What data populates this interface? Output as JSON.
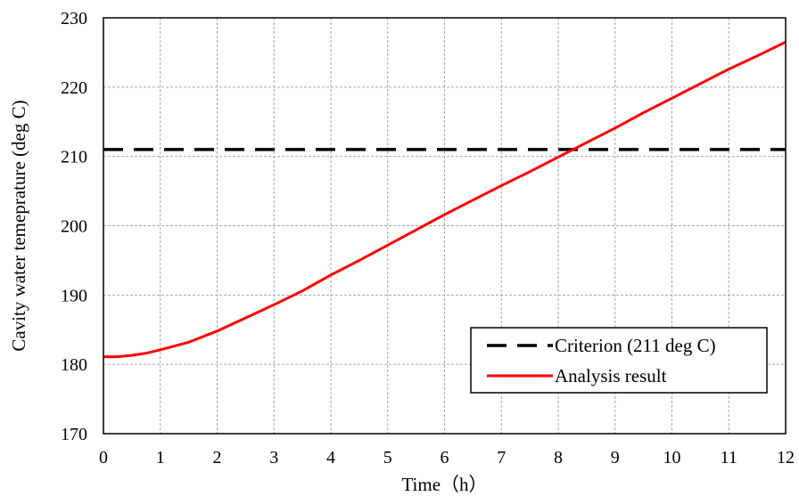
{
  "chart_data": {
    "type": "line",
    "title": "",
    "xlabel": "Time（h）",
    "ylabel": "Cavity water temeprature (deg C)",
    "xlim": [
      0,
      12
    ],
    "ylim": [
      170,
      230
    ],
    "x_ticks": [
      "0",
      "1",
      "2",
      "3",
      "4",
      "5",
      "6",
      "7",
      "8",
      "9",
      "10",
      "11",
      "12"
    ],
    "y_ticks": [
      "170",
      "180",
      "190",
      "200",
      "210",
      "220",
      "230"
    ],
    "grid": true,
    "legend_position": "bottom-right",
    "series": [
      {
        "name": "Criterion (211 deg C)",
        "style": "dashed",
        "color": "#000000",
        "x": [
          0,
          12
        ],
        "y": [
          211,
          211
        ]
      },
      {
        "name": "Analysis result",
        "style": "solid",
        "color": "#ff0000",
        "x": [
          0,
          0.25,
          0.5,
          0.75,
          1,
          1.5,
          2,
          2.5,
          3,
          3.5,
          4,
          4.5,
          5,
          5.5,
          6,
          6.5,
          7,
          7.5,
          8,
          8.5,
          9,
          9.5,
          10,
          10.5,
          11,
          11.5,
          12
        ],
        "y": [
          181.1,
          181.1,
          181.3,
          181.6,
          182.1,
          183.2,
          184.8,
          186.7,
          188.6,
          190.6,
          192.9,
          195.0,
          197.2,
          199.4,
          201.6,
          203.7,
          205.8,
          207.8,
          209.9,
          212.0,
          214.1,
          216.3,
          218.4,
          220.5,
          222.6,
          224.5,
          226.5
        ]
      }
    ]
  }
}
